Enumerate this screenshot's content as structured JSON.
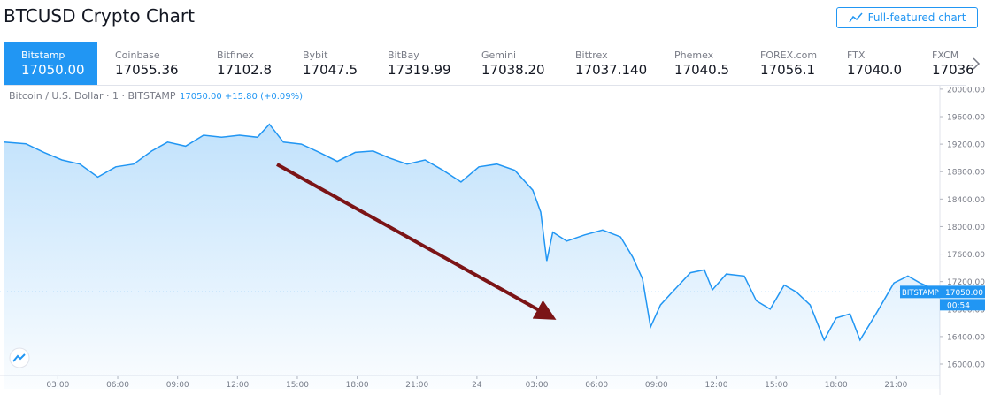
{
  "header": {
    "title": "BTCUSD Crypto Chart",
    "button": "Full-featured chart"
  },
  "tabs": [
    {
      "name": "Bitstamp",
      "price": "17050.00"
    },
    {
      "name": "Coinbase",
      "price": "17055.36"
    },
    {
      "name": "Bitfinex",
      "price": "17102.8"
    },
    {
      "name": "Bybit",
      "price": "17047.5"
    },
    {
      "name": "BitBay",
      "price": "17319.99"
    },
    {
      "name": "Gemini",
      "price": "17038.20"
    },
    {
      "name": "Bittrex",
      "price": "17037.140"
    },
    {
      "name": "Phemex",
      "price": "17040.5"
    },
    {
      "name": "FOREX.com",
      "price": "17056.1"
    },
    {
      "name": "FTX",
      "price": "17040.0"
    },
    {
      "name": "FXCM",
      "price": "17036"
    }
  ],
  "chart_data": {
    "type": "line",
    "title": "Bitcoin / U.S. Dollar · 1 · BITSTAMP",
    "subtitle": "17050.00 +15.80 (+0.09%)",
    "x": [
      0.3,
      1.4,
      2.3,
      3.2,
      4.1,
      5.0,
      5.9,
      6.8,
      7.7,
      8.5,
      9.4,
      10.3,
      11.2,
      12.1,
      13.0,
      13.6,
      14.3,
      15.2,
      16.1,
      17.0,
      17.9,
      18.8,
      19.6,
      20.5,
      21.4,
      22.3,
      23.2,
      24.1,
      25.0,
      25.9,
      26.8,
      27.2,
      27.5,
      27.8,
      28.5,
      29.4,
      30.3,
      31.2,
      31.8,
      32.3,
      32.7,
      33.2,
      33.8,
      34.7,
      35.4,
      35.8,
      36.5,
      37.4,
      38.0,
      38.7,
      39.4,
      40.0,
      40.7,
      41.4,
      42.0,
      42.7,
      43.2,
      44.0,
      44.9,
      45.6,
      46.2,
      47.2
    ],
    "series": [
      {
        "name": "BTCUSD",
        "color": "#2196f3",
        "values": [
          19230,
          19205,
          19080,
          18970,
          18910,
          18720,
          18870,
          18910,
          19100,
          19230,
          19170,
          19330,
          19300,
          19330,
          19300,
          19490,
          19230,
          19200,
          19080,
          18950,
          19080,
          19100,
          19000,
          18910,
          18970,
          18820,
          18650,
          18870,
          18910,
          18820,
          18530,
          18210,
          17500,
          17920,
          17790,
          17880,
          17950,
          17850,
          17560,
          17240,
          16540,
          16860,
          17050,
          17330,
          17370,
          17080,
          17310,
          17280,
          16920,
          16800,
          17150,
          17050,
          16860,
          16350,
          16670,
          16730,
          16350,
          16730,
          17180,
          17280,
          17180,
          17050
        ]
      }
    ],
    "xlim": [
      0.1,
      47.2
    ],
    "xticks": [
      {
        "value": 3,
        "label": "03:00"
      },
      {
        "value": 6,
        "label": "06:00"
      },
      {
        "value": 9,
        "label": "09:00"
      },
      {
        "value": 12,
        "label": "12:00"
      },
      {
        "value": 15,
        "label": "15:00"
      },
      {
        "value": 18,
        "label": "18:00"
      },
      {
        "value": 21,
        "label": "21:00"
      },
      24,
      {
        "value": 27,
        "label": "03:00"
      },
      {
        "value": 30,
        "label": "06:00"
      },
      {
        "value": 33,
        "label": "09:00"
      },
      {
        "value": 36,
        "label": "12:00"
      },
      {
        "value": 39,
        "label": "15:00"
      },
      {
        "value": 42,
        "label": "18:00"
      },
      {
        "value": 45,
        "label": "21:00"
      }
    ],
    "xtick_label_override": null,
    "ylim": [
      15640,
      20050
    ],
    "yticks": [
      {
        "value": 16000,
        "label": "16000.00"
      },
      {
        "value": 16400,
        "label": "16400.00"
      },
      {
        "value": 16800,
        "label": "16800.00"
      },
      {
        "value": 17200,
        "label": "17200.00"
      },
      {
        "value": 17600,
        "label": "17600.00"
      },
      {
        "value": 18000,
        "label": "18000.00"
      },
      {
        "value": 18400,
        "label": "18400.00"
      },
      {
        "value": 18800,
        "label": "18800.00"
      },
      {
        "value": 19200,
        "label": "19200.00"
      },
      {
        "value": 19600,
        "label": "19600.00"
      },
      {
        "value": 20000,
        "label": "20000.00"
      }
    ],
    "grid": false,
    "price_tag": {
      "name": "BITSTAMP",
      "value": 17050,
      "label": "17050.00",
      "countdown": "00:54"
    }
  }
}
